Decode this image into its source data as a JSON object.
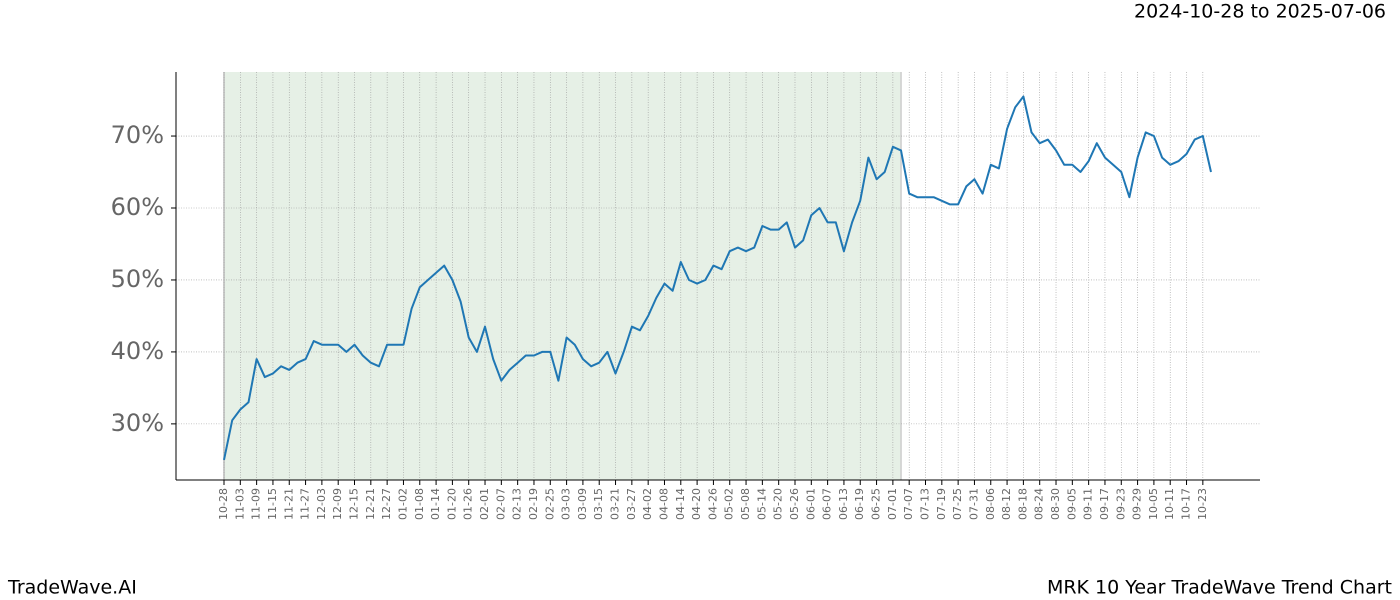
{
  "chart_data": {
    "type": "line",
    "title": "2024-10-28 to 2025-07-06",
    "brand": "TradeWave.AI",
    "subtitle": "MRK 10 Year TradeWave Trend Chart",
    "x": [
      "10-28",
      null,
      "11-03",
      null,
      "11-09",
      null,
      "11-15",
      null,
      "11-21",
      null,
      "11-27",
      null,
      "12-03",
      null,
      "12-09",
      null,
      "12-15",
      null,
      "12-21",
      null,
      "12-27",
      null,
      "01-02",
      null,
      "01-08",
      null,
      "01-14",
      null,
      "01-20",
      null,
      "01-26",
      null,
      "02-01",
      null,
      "02-07",
      null,
      "02-13",
      null,
      "02-19",
      null,
      "02-25",
      null,
      "03-03",
      null,
      "03-09",
      null,
      "03-15",
      null,
      "03-21",
      null,
      "03-27",
      null,
      "04-02",
      null,
      "04-08",
      null,
      "04-14",
      null,
      "04-20",
      null,
      "04-26",
      null,
      "05-02",
      null,
      "05-08",
      null,
      "05-14",
      null,
      "05-20",
      null,
      "05-26",
      null,
      "06-01",
      null,
      "06-07",
      null,
      "06-13",
      null,
      "06-19",
      null,
      "06-25",
      null,
      "07-01",
      null,
      "07-07",
      null,
      "07-13",
      null,
      "07-19",
      null,
      "07-25",
      null,
      "07-31",
      null,
      "08-06",
      null,
      "08-12",
      null,
      "08-18",
      null,
      "08-24",
      null,
      "08-30",
      null,
      "09-05",
      null,
      "09-11",
      null,
      "09-17",
      null,
      "09-23",
      null,
      "09-29",
      null,
      "10-05",
      null,
      "10-11",
      null,
      "10-17",
      null,
      "10-23",
      null
    ],
    "series": [
      {
        "name": "MRK",
        "color": "#1f77b4",
        "values": [
          25,
          30.5,
          32,
          33,
          39,
          36.5,
          37,
          38,
          37.5,
          38.5,
          39,
          41.5,
          41,
          41,
          41,
          40,
          41,
          39.5,
          38.5,
          38,
          41,
          41,
          41,
          46,
          49,
          50,
          51,
          52,
          50,
          47,
          42,
          40,
          43.5,
          39,
          36,
          37.5,
          38.5,
          39.5,
          39.5,
          40,
          40,
          36,
          42,
          41,
          39,
          38,
          38.5,
          40,
          37,
          40,
          43.5,
          43,
          45,
          47.5,
          49.5,
          48.5,
          52.5,
          50,
          49.5,
          50,
          52,
          51.5,
          54,
          54.5,
          54,
          54.5,
          57.5,
          57,
          57,
          58,
          54.5,
          55.5,
          59,
          60,
          58,
          58,
          54,
          58,
          61,
          67,
          64,
          65,
          68.5,
          68,
          62,
          61.5,
          61.5,
          61.5,
          61,
          60.5,
          60.5,
          63,
          64,
          62,
          66,
          65.5,
          71,
          74,
          75.5,
          70.5,
          69,
          69.5,
          68,
          66,
          66,
          65,
          66.5,
          69,
          67,
          66,
          65,
          61.5,
          67,
          70.5,
          70,
          67,
          66,
          66.5,
          67.5,
          69.5,
          70,
          65
        ]
      }
    ],
    "ylim": [
      22.2,
      78.9
    ],
    "yticks": [
      {
        "value": 30,
        "label": "30%"
      },
      {
        "value": 40,
        "label": "40%"
      },
      {
        "value": 50,
        "label": "50%"
      },
      {
        "value": 60,
        "label": "60%"
      },
      {
        "value": 70,
        "label": "70%"
      }
    ],
    "grid": true,
    "shaded_range": [
      0,
      83
    ],
    "shade_color": "#e6f0e6"
  }
}
